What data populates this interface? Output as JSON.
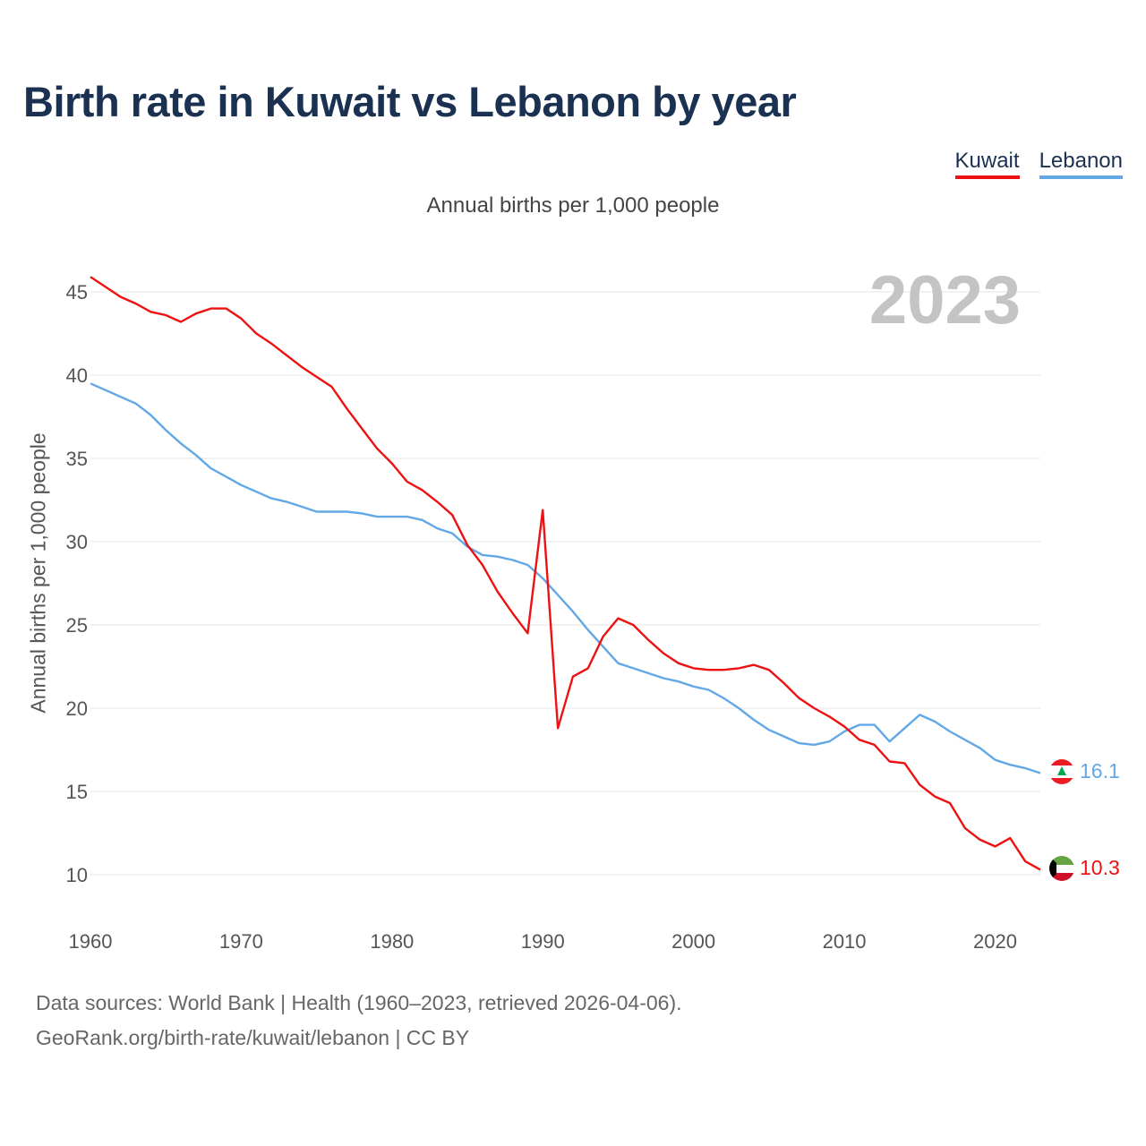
{
  "title": "Birth rate in Kuwait vs Lebanon by year",
  "legend": {
    "kuwait": "Kuwait",
    "lebanon": "Lebanon"
  },
  "chart_data": {
    "type": "line",
    "title": "Birth rate in Kuwait vs Lebanon by year",
    "subtitle": "Annual births per 1,000 people",
    "xlabel": "",
    "ylabel": "Annual births per 1,000 people",
    "year_label": "2023",
    "xlim": [
      1960,
      2023
    ],
    "ylim": [
      8,
      47.5
    ],
    "grid": true,
    "xticks": [
      1960,
      1970,
      1980,
      1990,
      2000,
      2010,
      2020
    ],
    "yticks": [
      10,
      15,
      20,
      25,
      30,
      35,
      40,
      45
    ],
    "x": [
      1960,
      1961,
      1962,
      1963,
      1964,
      1965,
      1966,
      1967,
      1968,
      1969,
      1970,
      1971,
      1972,
      1973,
      1974,
      1975,
      1976,
      1977,
      1978,
      1979,
      1980,
      1981,
      1982,
      1983,
      1984,
      1985,
      1986,
      1987,
      1988,
      1989,
      1990,
      1991,
      1992,
      1993,
      1994,
      1995,
      1996,
      1997,
      1998,
      1999,
      2000,
      2001,
      2002,
      2003,
      2004,
      2005,
      2006,
      2007,
      2008,
      2009,
      2010,
      2011,
      2012,
      2013,
      2014,
      2015,
      2016,
      2017,
      2018,
      2019,
      2020,
      2021,
      2022,
      2023
    ],
    "series": [
      {
        "name": "Kuwait",
        "color": "#ee1111",
        "end_label": "10.3",
        "flag": "Kuwait flag",
        "values": [
          45.9,
          45.3,
          44.7,
          44.3,
          43.8,
          43.6,
          43.2,
          43.7,
          44.0,
          44.0,
          43.4,
          42.5,
          41.9,
          41.2,
          40.5,
          39.9,
          39.3,
          38.0,
          36.8,
          35.6,
          34.7,
          33.6,
          33.1,
          32.4,
          31.6,
          29.8,
          28.6,
          27.0,
          25.7,
          24.5,
          31.9,
          18.8,
          21.9,
          22.4,
          24.3,
          25.4,
          25.0,
          24.1,
          23.3,
          22.7,
          22.4,
          22.3,
          22.3,
          22.4,
          22.6,
          22.3,
          21.5,
          20.6,
          20.0,
          19.5,
          18.9,
          18.1,
          17.8,
          16.8,
          16.7,
          15.4,
          14.7,
          14.3,
          12.8,
          12.1,
          11.7,
          12.2,
          10.8,
          10.3
        ]
      },
      {
        "name": "Lebanon",
        "color": "#63a8e6",
        "end_label": "16.1",
        "flag": "Lebanon flag",
        "values": [
          39.5,
          39.1,
          38.7,
          38.3,
          37.6,
          36.7,
          35.9,
          35.2,
          34.4,
          33.9,
          33.4,
          33.0,
          32.6,
          32.4,
          32.1,
          31.8,
          31.8,
          31.8,
          31.7,
          31.5,
          31.5,
          31.5,
          31.3,
          30.8,
          30.5,
          29.7,
          29.2,
          29.1,
          28.9,
          28.6,
          27.8,
          26.8,
          25.8,
          24.7,
          23.7,
          22.7,
          22.4,
          22.1,
          21.8,
          21.6,
          21.3,
          21.1,
          20.6,
          20.0,
          19.3,
          18.7,
          18.3,
          17.9,
          17.8,
          18.0,
          18.6,
          19.0,
          19.0,
          18.0,
          18.8,
          19.6,
          19.2,
          18.6,
          18.1,
          17.6,
          16.9,
          16.6,
          16.4,
          16.1
        ]
      }
    ]
  },
  "footer": {
    "line1": "Data sources: World Bank | Health (1960–2023, retrieved 2026-04-06).",
    "line2": "GeoRank.org/birth-rate/kuwait/lebanon | CC BY"
  }
}
